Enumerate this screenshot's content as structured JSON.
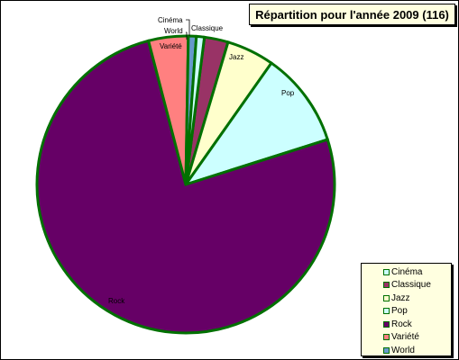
{
  "chart_data": {
    "type": "pie",
    "title": "Répartition pour l'année 2009 (116)",
    "categories": [
      "Cinéma",
      "Classique",
      "Jazz",
      "Pop",
      "Rock",
      "Variété",
      "World"
    ],
    "values": [
      1,
      3,
      6,
      12,
      88,
      5,
      1
    ],
    "colors": [
      "#ccffff",
      "#993366",
      "#ffffcc",
      "#ccffff",
      "#660066",
      "#ff8080",
      "#6699cc"
    ],
    "slice_border_color": "#007000",
    "legend": {
      "placement": "bottom-right",
      "entries": [
        "Cinéma",
        "Classique",
        "Jazz",
        "Pop",
        "Rock",
        "Variété",
        "World"
      ]
    }
  }
}
